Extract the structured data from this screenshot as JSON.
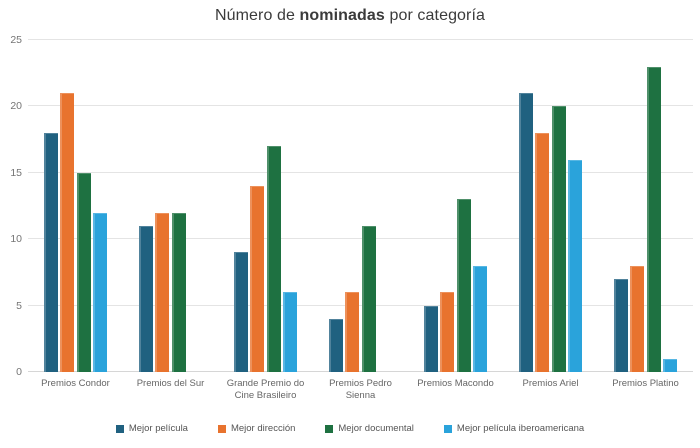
{
  "chart_data": {
    "type": "bar",
    "title": {
      "full": "Número de nominadas por categoría",
      "prefix": "Número de ",
      "bold": "nominadas",
      "suffix": " por categoría"
    },
    "categories": [
      "Premios Condor",
      "Premios del Sur",
      "Grande Premio do Cine Brasileiro",
      "Premios Pedro Sienna",
      "Premios Macondo",
      "Premios Ariel",
      "Premios Platino"
    ],
    "series": [
      {
        "name": "Mejor película",
        "color": "#206180",
        "values": [
          18,
          11,
          9,
          4,
          5,
          21,
          7
        ]
      },
      {
        "name": "Mejor dirección",
        "color": "#E8732E",
        "values": [
          21,
          12,
          14,
          6,
          6,
          18,
          8
        ]
      },
      {
        "name": "Mejor documental",
        "color": "#1E7141",
        "values": [
          15,
          12,
          17,
          11,
          13,
          20,
          23
        ]
      },
      {
        "name": "Mejor película iberoamericana",
        "color": "#2AA3DB",
        "values": [
          12,
          null,
          6,
          null,
          8,
          16,
          1
        ]
      }
    ],
    "y_axis": {
      "min": 0,
      "max": 25,
      "step": 5,
      "ticks": [
        0,
        5,
        10,
        15,
        20,
        25
      ]
    },
    "grid": "horizontal",
    "legend_position": "bottom",
    "text_colors": {
      "title": "#3b3b3b",
      "y_ticks": "#757575",
      "x_labels": "#666666",
      "legend": "#555555"
    },
    "gridline_color": "#e4e4e4"
  }
}
